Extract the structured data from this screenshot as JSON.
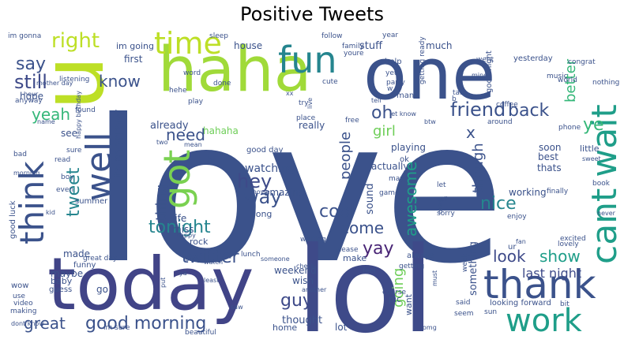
{
  "title": "Positive Tweets",
  "chart_data": {
    "type": "wordcloud",
    "title": "Positive Tweets",
    "words": [
      {
        "text": "love",
        "weight": 100,
        "color": "#3b528b"
      },
      {
        "text": "lol",
        "weight": 62,
        "color": "#3e4a89"
      },
      {
        "text": "today",
        "weight": 48,
        "color": "#414487"
      },
      {
        "text": "one",
        "weight": 45,
        "color": "#3b528b"
      },
      {
        "text": "haha",
        "weight": 42,
        "color": "#a0da39"
      },
      {
        "text": "u",
        "weight": 40,
        "color": "#bddf26"
      },
      {
        "text": "thank",
        "weight": 30,
        "color": "#3b528b"
      },
      {
        "text": "fun",
        "weight": 28,
        "color": "#25858e"
      },
      {
        "text": "cant wait",
        "weight": 27,
        "color": "#1f9e89"
      },
      {
        "text": "time",
        "weight": 26,
        "color": "#bddf26"
      },
      {
        "text": "think",
        "weight": 26,
        "color": "#3b528b"
      },
      {
        "text": "got",
        "weight": 25,
        "color": "#7ad151"
      },
      {
        "text": "well",
        "weight": 24,
        "color": "#3b528b"
      },
      {
        "text": "work",
        "weight": 23,
        "color": "#1f9e89"
      },
      {
        "text": "right",
        "weight": 14,
        "color": "#bddf26"
      },
      {
        "text": "still",
        "weight": 12,
        "color": "#3e4a89"
      },
      {
        "text": "good morning",
        "weight": 12,
        "color": "#3b528b"
      },
      {
        "text": "twitter",
        "weight": 11,
        "color": "#3b528b"
      },
      {
        "text": "hey",
        "weight": 11,
        "color": "#3e4a89"
      },
      {
        "text": "way",
        "weight": 11,
        "color": "#3b528b"
      },
      {
        "text": "friend",
        "weight": 11,
        "color": "#3b528b"
      },
      {
        "text": "yay",
        "weight": 11,
        "color": "#482475"
      },
      {
        "text": "show",
        "weight": 10,
        "color": "#1f9e89"
      },
      {
        "text": "guy",
        "weight": 10,
        "color": "#3e4a89"
      },
      {
        "text": "back",
        "weight": 10,
        "color": "#3b528b"
      },
      {
        "text": "nice",
        "weight": 10,
        "color": "#25858e"
      },
      {
        "text": "cool",
        "weight": 10,
        "color": "#3b528b"
      },
      {
        "text": "tonight",
        "weight": 10,
        "color": "#25858e"
      },
      {
        "text": "great",
        "weight": 9,
        "color": "#3b528b"
      },
      {
        "text": "tweet",
        "weight": 9,
        "color": "#25858e"
      },
      {
        "text": "know",
        "weight": 9,
        "color": "#3b528b"
      },
      {
        "text": "need",
        "weight": 9,
        "color": "#3b528b"
      },
      {
        "text": "yeah",
        "weight": 9,
        "color": "#35b779"
      },
      {
        "text": "look",
        "weight": 9,
        "color": "#3e4a89"
      },
      {
        "text": "awesome",
        "weight": 9,
        "color": "#1f9e89"
      },
      {
        "text": "people",
        "weight": 8,
        "color": "#3b528b"
      },
      {
        "text": "better",
        "weight": 8,
        "color": "#35b779"
      },
      {
        "text": "ye",
        "weight": 9,
        "color": "#35b779"
      },
      {
        "text": "oh",
        "weight": 9,
        "color": "#3b528b"
      },
      {
        "text": "say",
        "weight": 9,
        "color": "#3b528b"
      },
      {
        "text": "come",
        "weight": 8,
        "color": "#3b528b"
      },
      {
        "text": "tomorrow",
        "weight": 8,
        "color": "#3b528b"
      },
      {
        "text": "thing",
        "weight": 8,
        "color": "#3b528b"
      },
      {
        "text": "girl",
        "weight": 8,
        "color": "#6ece58"
      },
      {
        "text": "though",
        "weight": 8,
        "color": "#3b528b"
      },
      {
        "text": "going",
        "weight": 7,
        "color": "#6ece58"
      },
      {
        "text": "last night",
        "weight": 6,
        "color": "#3e4a89"
      },
      {
        "text": "watching",
        "weight": 6,
        "color": "#3b528b"
      },
      {
        "text": "amazing",
        "weight": 5,
        "color": "#3b528b"
      },
      {
        "text": "x",
        "weight": 7,
        "color": "#3b528b"
      },
      {
        "text": "stuff",
        "weight": 5,
        "color": "#3b528b"
      },
      {
        "text": "much",
        "weight": 5,
        "color": "#3b528b"
      },
      {
        "text": "first",
        "weight": 5,
        "color": "#3b528b"
      },
      {
        "text": "im going",
        "weight": 5,
        "color": "#3b528b"
      },
      {
        "text": "house",
        "weight": 5,
        "color": "#3b528b"
      },
      {
        "text": "actually",
        "weight": 5,
        "color": "#3b528b"
      },
      {
        "text": "something",
        "weight": 5,
        "color": "#3b528b"
      },
      {
        "text": "already",
        "weight": 5,
        "color": "#3b528b"
      },
      {
        "text": "hahaha",
        "weight": 5,
        "color": "#6ece58"
      },
      {
        "text": "really",
        "weight": 5,
        "color": "#3b528b"
      },
      {
        "text": "wish",
        "weight": 5,
        "color": "#3b528b"
      },
      {
        "text": "thought",
        "weight": 5,
        "color": "#3b528b"
      },
      {
        "text": "weekend",
        "weight": 5,
        "color": "#3b528b"
      },
      {
        "text": "made",
        "weight": 5,
        "color": "#3b528b"
      },
      {
        "text": "maybe",
        "weight": 5,
        "color": "#3b528b"
      },
      {
        "text": "hope",
        "weight": 5,
        "color": "#3b528b"
      },
      {
        "text": "see",
        "weight": 5,
        "color": "#3b528b"
      },
      {
        "text": "miss",
        "weight": 5,
        "color": "#3b528b"
      },
      {
        "text": "life",
        "weight": 5,
        "color": "#3b528b"
      },
      {
        "text": "sound",
        "weight": 5,
        "color": "#3b528b"
      },
      {
        "text": "working",
        "weight": 4,
        "color": "#3b528b"
      },
      {
        "text": "best",
        "weight": 4,
        "color": "#3b528b"
      },
      {
        "text": "thats",
        "weight": 4,
        "color": "#3b528b"
      },
      {
        "text": "soon",
        "weight": 4,
        "color": "#3b528b"
      },
      {
        "text": "little",
        "weight": 4,
        "color": "#3b528b"
      },
      {
        "text": "good day",
        "weight": 3,
        "color": "#3b528b"
      },
      {
        "text": "song",
        "weight": 4,
        "color": "#3b528b"
      },
      {
        "text": "baby",
        "weight": 4,
        "color": "#3b528b"
      },
      {
        "text": "go",
        "weight": 4,
        "color": "#3b528b"
      },
      {
        "text": "home",
        "weight": 4,
        "color": "#3b528b"
      },
      {
        "text": "lot",
        "weight": 4,
        "color": "#3b528b"
      },
      {
        "text": "want",
        "weight": 4,
        "color": "#3b528b"
      },
      {
        "text": "pic",
        "weight": 4,
        "color": "#3b528b"
      },
      {
        "text": "playing",
        "weight": 4,
        "color": "#3b528b"
      },
      {
        "text": "im gonna",
        "weight": 3,
        "color": "#3b528b"
      },
      {
        "text": "good luck",
        "weight": 3,
        "color": "#3b528b"
      },
      {
        "text": "wow",
        "weight": 3,
        "color": "#3b528b"
      },
      {
        "text": "summer",
        "weight": 3,
        "color": "#3b528b"
      },
      {
        "text": "funny",
        "weight": 3,
        "color": "#3b528b"
      },
      {
        "text": "great day",
        "weight": 3,
        "color": "#3b528b"
      },
      {
        "text": "rock",
        "weight": 3,
        "color": "#3b528b"
      },
      {
        "text": "guess",
        "weight": 3,
        "color": "#3b528b"
      },
      {
        "text": "use",
        "weight": 3,
        "color": "#3b528b"
      },
      {
        "text": "video",
        "weight": 3,
        "color": "#3b528b"
      },
      {
        "text": "making",
        "weight": 3,
        "color": "#3b528b"
      },
      {
        "text": "dont know",
        "weight": 3,
        "color": "#3b528b"
      },
      {
        "text": "im sure",
        "weight": 3,
        "color": "#3b528b"
      },
      {
        "text": "beautiful",
        "weight": 3,
        "color": "#3b528b"
      },
      {
        "text": "listening",
        "weight": 3,
        "color": "#3b528b"
      },
      {
        "text": "anyway",
        "weight": 3,
        "color": "#3b528b"
      },
      {
        "text": "hour",
        "weight": 3,
        "color": "#3b528b"
      },
      {
        "text": "found",
        "weight": 3,
        "color": "#3b528b"
      },
      {
        "text": "happy birthday",
        "weight": 3,
        "color": "#3b528b"
      },
      {
        "text": "name",
        "weight": 3,
        "color": "#3b528b"
      },
      {
        "text": "sure",
        "weight": 3,
        "color": "#3b528b"
      },
      {
        "text": "bad",
        "weight": 3,
        "color": "#3b528b"
      },
      {
        "text": "read",
        "weight": 3,
        "color": "#3b528b"
      },
      {
        "text": "morning",
        "weight": 3,
        "color": "#3b528b"
      },
      {
        "text": "boy",
        "weight": 3,
        "color": "#3b528b"
      },
      {
        "text": "even",
        "weight": 3,
        "color": "#3b528b"
      },
      {
        "text": "kid",
        "weight": 3,
        "color": "#3b528b"
      },
      {
        "text": "two",
        "weight": 3,
        "color": "#3b528b"
      },
      {
        "text": "mean",
        "weight": 3,
        "color": "#3b528b"
      },
      {
        "text": "hi",
        "weight": 3,
        "color": "#3b528b"
      },
      {
        "text": "movie",
        "weight": 3,
        "color": "#3b528b"
      },
      {
        "text": "happy",
        "weight": 3,
        "color": "#3b528b"
      },
      {
        "text": "watch",
        "weight": 3,
        "color": "#3b528b"
      },
      {
        "text": "lunch",
        "weight": 3,
        "color": "#3b528b"
      },
      {
        "text": "waiting",
        "weight": 3,
        "color": "#3b528b"
      },
      {
        "text": "make",
        "weight": 3,
        "color": "#3b528b"
      },
      {
        "text": "later",
        "weight": 3,
        "color": "#3b528b"
      },
      {
        "text": "someone",
        "weight": 3,
        "color": "#3b528b"
      },
      {
        "text": "ya",
        "weight": 3,
        "color": "#3b528b"
      },
      {
        "text": "put",
        "weight": 3,
        "color": "#3b528b"
      },
      {
        "text": "least",
        "weight": 3,
        "color": "#3b528b"
      },
      {
        "text": "another",
        "weight": 3,
        "color": "#3b528b"
      },
      {
        "text": "saw",
        "weight": 3,
        "color": "#3b528b"
      },
      {
        "text": "check",
        "weight": 3,
        "color": "#3b528b"
      },
      {
        "text": "please",
        "weight": 3,
        "color": "#3b528b"
      },
      {
        "text": "feel",
        "weight": 3,
        "color": "#3b528b"
      },
      {
        "text": "getting",
        "weight": 3,
        "color": "#3b528b"
      },
      {
        "text": "always",
        "weight": 3,
        "color": "#3b528b"
      },
      {
        "text": "course",
        "weight": 3,
        "color": "#3b528b"
      },
      {
        "text": "must",
        "weight": 3,
        "color": "#3b528b"
      },
      {
        "text": "said",
        "weight": 3,
        "color": "#3b528b"
      },
      {
        "text": "seem",
        "weight": 3,
        "color": "#3b528b"
      },
      {
        "text": "omg",
        "weight": 3,
        "color": "#3b528b"
      },
      {
        "text": "sun",
        "weight": 3,
        "color": "#3b528b"
      },
      {
        "text": "bit",
        "weight": 3,
        "color": "#3b528b"
      },
      {
        "text": "looking forward",
        "weight": 3,
        "color": "#3b528b"
      },
      {
        "text": "lovely",
        "weight": 3,
        "color": "#3b528b"
      },
      {
        "text": "excited",
        "weight": 3,
        "color": "#3b528b"
      },
      {
        "text": "fan",
        "weight": 3,
        "color": "#3b528b"
      },
      {
        "text": "ur",
        "weight": 3,
        "color": "#3b528b"
      },
      {
        "text": "enjoy",
        "weight": 3,
        "color": "#3b528b"
      },
      {
        "text": "never",
        "weight": 3,
        "color": "#3b528b"
      },
      {
        "text": "finally",
        "weight": 3,
        "color": "#3b528b"
      },
      {
        "text": "week",
        "weight": 3,
        "color": "#3b528b"
      },
      {
        "text": "sorry",
        "weight": 3,
        "color": "#3b528b"
      },
      {
        "text": "call",
        "weight": 3,
        "color": "#3b528b"
      },
      {
        "text": "let",
        "weight": 3,
        "color": "#3b528b"
      },
      {
        "text": "okay",
        "weight": 3,
        "color": "#3b528b"
      },
      {
        "text": "may",
        "weight": 3,
        "color": "#3b528b"
      },
      {
        "text": "game",
        "weight": 3,
        "color": "#3b528b"
      },
      {
        "text": "ok",
        "weight": 3,
        "color": "#3b528b"
      },
      {
        "text": "phone",
        "weight": 3,
        "color": "#3b528b"
      },
      {
        "text": "sweet",
        "weight": 3,
        "color": "#3b528b"
      },
      {
        "text": "book",
        "weight": 3,
        "color": "#3b528b"
      },
      {
        "text": "around",
        "weight": 3,
        "color": "#3b528b"
      },
      {
        "text": "coffee",
        "weight": 3,
        "color": "#3b528b"
      },
      {
        "text": "nothing",
        "weight": 3,
        "color": "#3b528b"
      },
      {
        "text": "world",
        "weight": 3,
        "color": "#3b528b"
      },
      {
        "text": "music",
        "weight": 3,
        "color": "#3b528b"
      },
      {
        "text": "yesterday",
        "weight": 3,
        "color": "#3b528b"
      },
      {
        "text": "congrat",
        "weight": 3,
        "color": "#3b528b"
      },
      {
        "text": "went",
        "weight": 3,
        "color": "#3b528b"
      },
      {
        "text": "good night",
        "weight": 3,
        "color": "#3b528b"
      },
      {
        "text": "mine",
        "weight": 3,
        "color": "#3b528b"
      },
      {
        "text": "talk",
        "weight": 3,
        "color": "#3b528b"
      },
      {
        "text": "b",
        "weight": 3,
        "color": "#3b528b"
      },
      {
        "text": "p",
        "weight": 3,
        "color": "#3b528b"
      },
      {
        "text": "help",
        "weight": 3,
        "color": "#3b528b"
      },
      {
        "text": "yet",
        "weight": 3,
        "color": "#3b528b"
      },
      {
        "text": "party",
        "weight": 3,
        "color": "#3b528b"
      },
      {
        "text": "w",
        "weight": 3,
        "color": "#3b528b"
      },
      {
        "text": "getting ready",
        "weight": 3,
        "color": "#3b528b"
      },
      {
        "text": "youre",
        "weight": 3,
        "color": "#3b528b"
      },
      {
        "text": "family",
        "weight": 3,
        "color": "#3b528b"
      },
      {
        "text": "follow",
        "weight": 3,
        "color": "#3b528b"
      },
      {
        "text": "year",
        "weight": 3,
        "color": "#3b528b"
      },
      {
        "text": "sleep",
        "weight": 3,
        "color": "#3b528b"
      },
      {
        "text": "word",
        "weight": 3,
        "color": "#3b528b"
      },
      {
        "text": "hehe",
        "weight": 3,
        "color": "#3b528b"
      },
      {
        "text": "done",
        "weight": 3,
        "color": "#3b528b"
      },
      {
        "text": "play",
        "weight": 3,
        "color": "#3b528b"
      },
      {
        "text": "xx",
        "weight": 3,
        "color": "#3b528b"
      },
      {
        "text": "try",
        "weight": 3,
        "color": "#3b528b"
      },
      {
        "text": "cute",
        "weight": 3,
        "color": "#3b528b"
      },
      {
        "text": "live",
        "weight": 3,
        "color": "#3b528b"
      },
      {
        "text": "man",
        "weight": 3,
        "color": "#3b528b"
      },
      {
        "text": "let know",
        "weight": 3,
        "color": "#3b528b"
      },
      {
        "text": "btw",
        "weight": 3,
        "color": "#3b528b"
      },
      {
        "text": "place",
        "weight": 3,
        "color": "#3b528b"
      },
      {
        "text": "free",
        "weight": 3,
        "color": "#3b528b"
      },
      {
        "text": "tell",
        "weight": 3,
        "color": "#3b528b"
      },
      {
        "text": "mother day",
        "weight": 3,
        "color": "#3b528b"
      }
    ]
  }
}
